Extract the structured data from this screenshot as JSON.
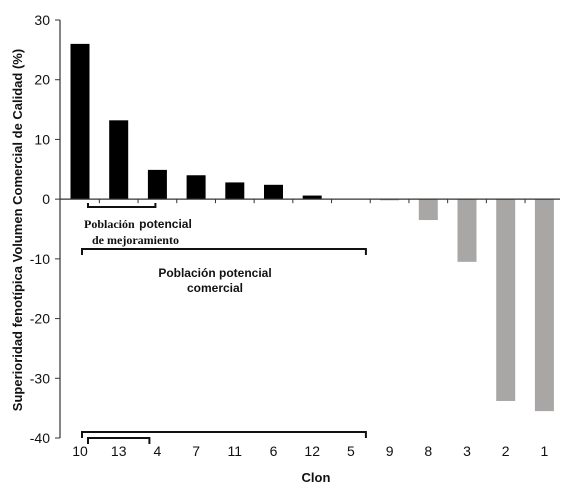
{
  "chart_data": {
    "type": "bar",
    "title": "",
    "xlabel": "Clon",
    "ylabel": "Superioridad fenotípica Volumen Comercial de Calidad (%)",
    "ylim": [
      -40,
      30
    ],
    "yticks": [
      -40,
      -30,
      -20,
      -10,
      0,
      10,
      20,
      30
    ],
    "categories": [
      "10",
      "13",
      "4",
      "7",
      "11",
      "6",
      "12",
      "5",
      "9",
      "8",
      "3",
      "2",
      "1"
    ],
    "values": [
      26.0,
      13.2,
      4.9,
      4.0,
      2.8,
      2.4,
      0.6,
      0.0,
      -0.2,
      -3.5,
      -10.5,
      -33.8,
      -35.5
    ],
    "colors": {
      "positive": "#000000",
      "negative": "#a9a6a6",
      "axis": "#333333",
      "text": "#111111"
    },
    "grid": false,
    "legend": "none",
    "annotations": {
      "improvement_label_prefix": "Población",
      "improvement_label_rest": "potencial",
      "improvement_label_line2": "de mejoramiento",
      "commercial_label_line1": "Población potencial",
      "commercial_label_line2": "comercial",
      "improvement_group": [
        "10",
        "13",
        "4"
      ],
      "commercial_group": [
        "10",
        "13",
        "4",
        "7",
        "11",
        "6",
        "12",
        "5"
      ]
    }
  }
}
